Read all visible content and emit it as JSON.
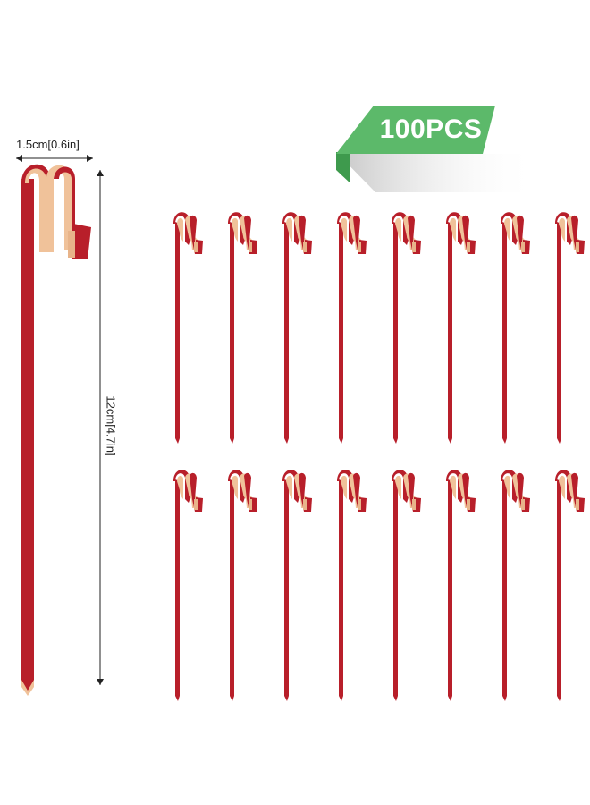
{
  "dimensions": {
    "width_label": "1.5cm[0.6in]",
    "height_label": "12cm[4.7in]"
  },
  "badge": {
    "text": "100PCS",
    "color": "#5cb96a"
  },
  "product": {
    "name_icon": "knot-bamboo-skewer",
    "stick_color": "#b81f2a",
    "wood_color": "#f0c29a",
    "grid_rows": 2,
    "grid_columns": 8
  }
}
